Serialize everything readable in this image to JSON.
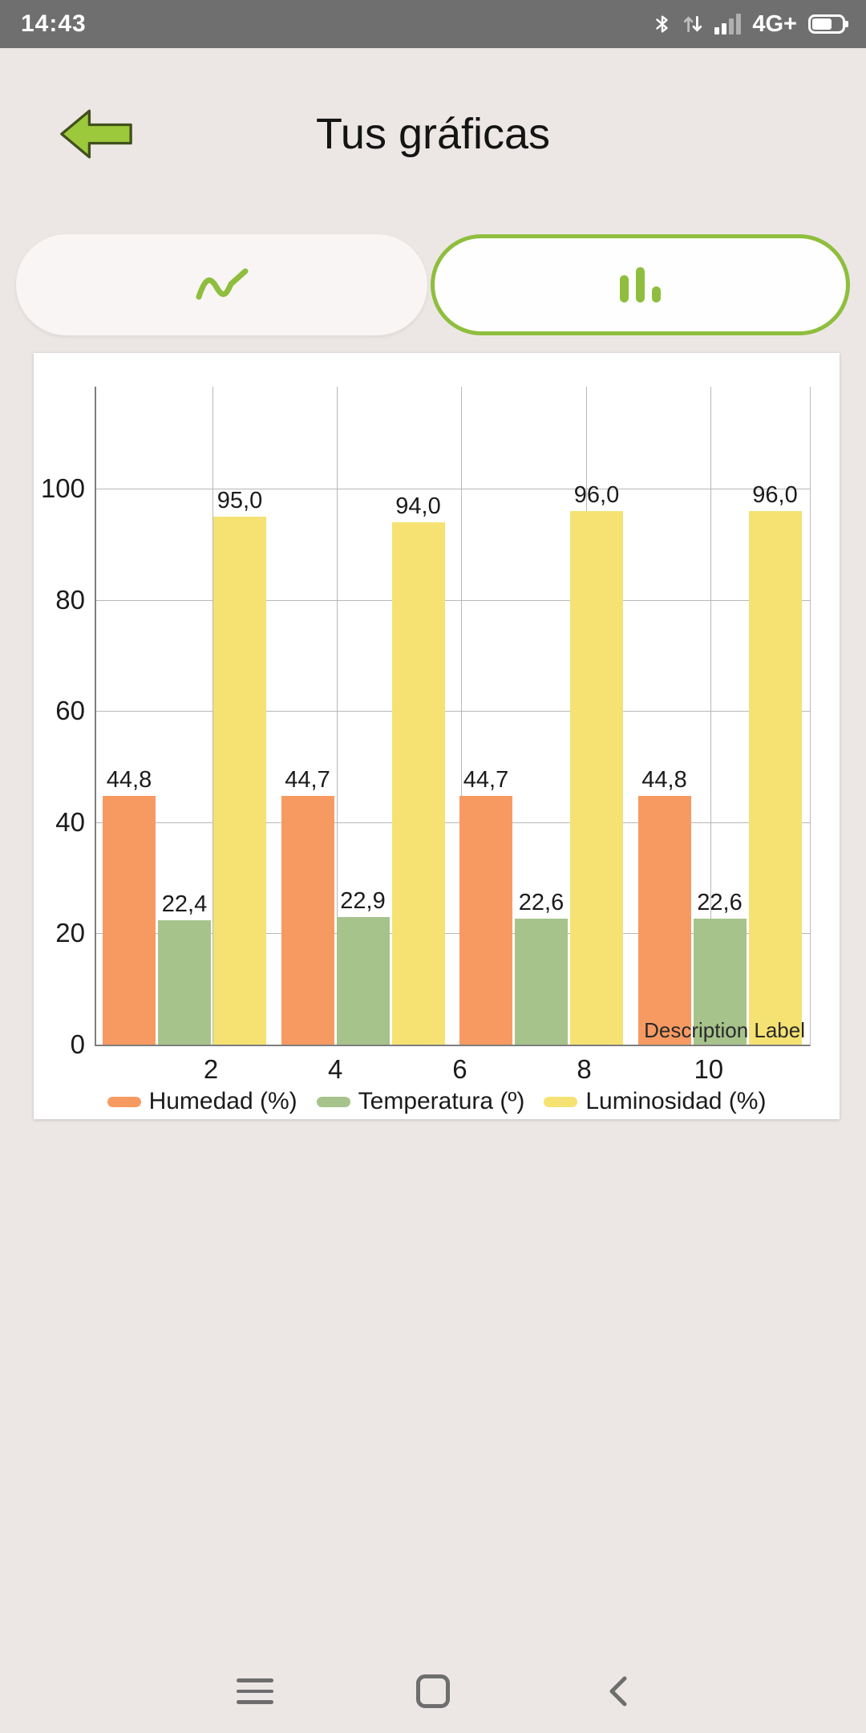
{
  "status_bar": {
    "time": "14:43",
    "network": "4G+"
  },
  "header": {
    "title": "Tus gráficas"
  },
  "toggle": {
    "line_tab_selected": false,
    "bar_tab_selected": true
  },
  "chart_data": {
    "type": "bar",
    "title": "",
    "description_label": "Description Label",
    "x_ticks": [
      "2",
      "4",
      "6",
      "8",
      "10"
    ],
    "y_ticks": [
      0,
      20,
      40,
      60,
      80,
      100
    ],
    "ylim": [
      0,
      118
    ],
    "groups": [
      1,
      2,
      3,
      4
    ],
    "series": [
      {
        "name": "Humedad (%)",
        "color": "#F79A62",
        "values": [
          44.8,
          44.7,
          44.7,
          44.8
        ],
        "labels": [
          "44,8",
          "44,7",
          "44,7",
          "44,8"
        ]
      },
      {
        "name": "Temperatura (º)",
        "color": "#A6C38B",
        "values": [
          22.4,
          22.9,
          22.6,
          22.6
        ],
        "labels": [
          "22,4",
          "22,9",
          "22,6",
          "22,6"
        ]
      },
      {
        "name": "Luminosidad (%)",
        "color": "#F5E272",
        "values": [
          95.0,
          94.0,
          96.0,
          96.0
        ],
        "labels": [
          "95,0",
          "94,0",
          "96,0",
          "96,0"
        ]
      }
    ],
    "grid": true,
    "legend_position": "bottom"
  },
  "colors": {
    "accent_green": "#8FBE3E",
    "status_bar_bg": "#6F6F6F",
    "page_bg": "#ECE7E5"
  }
}
